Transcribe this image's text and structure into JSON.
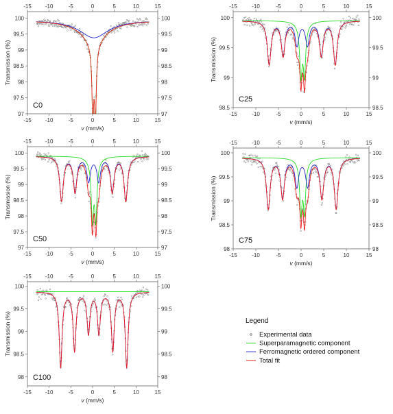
{
  "chart_data": [
    {
      "id": "C0",
      "type": "scatter",
      "panel_label": "C0",
      "xlabel_var": "v",
      "xlabel_unit": " (mm/s)",
      "ylabel": "Transmission (%)",
      "xlim": [
        -15,
        15
      ],
      "ylim": [
        97,
        100.2
      ],
      "xticks": [
        -15,
        -10,
        -5,
        0,
        5,
        10,
        15
      ],
      "yticks_left": [
        97,
        97.5,
        98,
        98.5,
        99,
        99.5,
        100
      ],
      "yticks_right": [
        97,
        97.5,
        98,
        98.5,
        99,
        99.5,
        100
      ],
      "baseline": 99.93,
      "singlet": {
        "center": 0.3,
        "depth": 0.38,
        "hwhm": 1.4
      },
      "doublet": {
        "center": 0.35,
        "split": 0.6,
        "depth": 2.2,
        "hwhm": 0.22
      },
      "sextet": {
        "center": 0.0,
        "field": 0.0,
        "depth": 0.0,
        "hwhm": 0.3
      },
      "broad": {
        "center": 0.3,
        "depth": 0.55,
        "hwhm": 4.0
      },
      "noise": 0.06,
      "n_points": 230,
      "seed": 11
    },
    {
      "id": "C25",
      "type": "scatter",
      "panel_label": "C25",
      "xlabel_var": "v",
      "xlabel_unit": " (mm/s)",
      "ylabel": "Transmission (%)",
      "xlim": [
        -15,
        15
      ],
      "ylim": [
        98.5,
        100.1
      ],
      "xticks": [
        -15,
        -10,
        -5,
        0,
        5,
        10,
        15
      ],
      "yticks_left": [
        98.5,
        99,
        99.5,
        100
      ],
      "yticks_right": [
        98.5,
        99,
        99.5,
        100
      ],
      "baseline": 99.95,
      "singlet": {
        "center": 0.3,
        "depth": 0.18,
        "hwhm": 1.0
      },
      "doublet": {
        "center": 0.35,
        "split": 0.8,
        "depth": 0.75,
        "hwhm": 0.3
      },
      "sextet": {
        "center": 0.25,
        "field": 7.3,
        "depth": 0.72,
        "hwhm": 0.5
      },
      "broad": {
        "center": 0.0,
        "depth": 0.0,
        "hwhm": 1.0
      },
      "noise": 0.045,
      "n_points": 230,
      "seed": 25
    },
    {
      "id": "C50",
      "type": "scatter",
      "panel_label": "C50",
      "xlabel_var": "v",
      "xlabel_unit": " (mm/s)",
      "ylabel": "Transmission (%)",
      "xlim": [
        -15,
        15
      ],
      "ylim": [
        97,
        100.2
      ],
      "xticks": [
        -15,
        -10,
        -5,
        0,
        5,
        10,
        15
      ],
      "yticks_left": [
        97,
        97.5,
        98,
        98.5,
        99,
        99.5,
        100
      ],
      "yticks_right": [
        97,
        97.5,
        98,
        98.5,
        99,
        99.5,
        100
      ],
      "baseline": 99.9,
      "singlet": {
        "center": 0.3,
        "depth": 0.32,
        "hwhm": 1.1
      },
      "doublet": {
        "center": 0.35,
        "split": 0.8,
        "depth": 1.7,
        "hwhm": 0.3
      },
      "sextet": {
        "center": 0.25,
        "field": 7.4,
        "depth": 1.4,
        "hwhm": 0.5
      },
      "broad": {
        "center": 0.0,
        "depth": 0.0,
        "hwhm": 1.0
      },
      "noise": 0.07,
      "n_points": 230,
      "seed": 50
    },
    {
      "id": "C75",
      "type": "scatter",
      "panel_label": "C75",
      "xlabel_var": "v",
      "xlabel_unit": " (mm/s)",
      "ylabel": "Transmission (%)",
      "xlim": [
        -15,
        15
      ],
      "ylim": [
        98,
        100.1
      ],
      "xticks": [
        -15,
        -10,
        -5,
        0,
        5,
        10,
        15
      ],
      "yticks_left": [
        98,
        98.5,
        99,
        99.5,
        100
      ],
      "yticks_right": [
        98,
        98.5,
        99,
        99.5,
        100
      ],
      "baseline": 99.9,
      "singlet": {
        "center": 0.3,
        "depth": 0.2,
        "hwhm": 1.0
      },
      "doublet": {
        "center": 0.35,
        "split": 0.8,
        "depth": 0.95,
        "hwhm": 0.3
      },
      "sextet": {
        "center": 0.25,
        "field": 7.5,
        "depth": 1.05,
        "hwhm": 0.5
      },
      "broad": {
        "center": 0.0,
        "depth": 0.0,
        "hwhm": 1.0
      },
      "noise": 0.06,
      "n_points": 230,
      "seed": 75
    },
    {
      "id": "C100",
      "type": "scatter",
      "panel_label": "C100",
      "xlabel_var": "v",
      "xlabel_unit": " (mm/s)",
      "ylabel": "Transmission (%)",
      "xlim": [
        -15,
        15
      ],
      "ylim": [
        97.8,
        100.1
      ],
      "xticks": [
        -15,
        -10,
        -5,
        0,
        5,
        10,
        15
      ],
      "yticks_left": [
        98,
        98.5,
        99,
        99.5,
        100
      ],
      "yticks_right": [
        98,
        98.5,
        99,
        99.5,
        100
      ],
      "baseline": 99.88,
      "singlet": {
        "center": 0.0,
        "depth": 0.0,
        "hwhm": 1.0
      },
      "doublet": {
        "center": 0.0,
        "split": 0.0,
        "depth": 0.0,
        "hwhm": 0.3
      },
      "sextet": {
        "center": 0.25,
        "field": 7.6,
        "depth": 1.65,
        "hwhm": 0.4
      },
      "broad": {
        "center": 0.0,
        "depth": 0.0,
        "hwhm": 1.0
      },
      "noise": 0.06,
      "n_points": 230,
      "seed": 100
    }
  ],
  "series_style": {
    "experimental": {
      "color": "#7a7a7a",
      "marker": "small-open-circle"
    },
    "superparamagnetic": {
      "color": "#22dd22"
    },
    "ferromagnetic": {
      "color": "#2222cc"
    },
    "total": {
      "color": "#ee2222"
    }
  },
  "legend": {
    "title": "Legend",
    "items": [
      {
        "key": "experimental",
        "label": "Experimental data"
      },
      {
        "key": "superparamagnetic",
        "label": "Superparamagnetic component"
      },
      {
        "key": "ferromagnetic",
        "label": "Ferromagnetic ordered component"
      },
      {
        "key": "total",
        "label": "Total fit"
      }
    ]
  }
}
